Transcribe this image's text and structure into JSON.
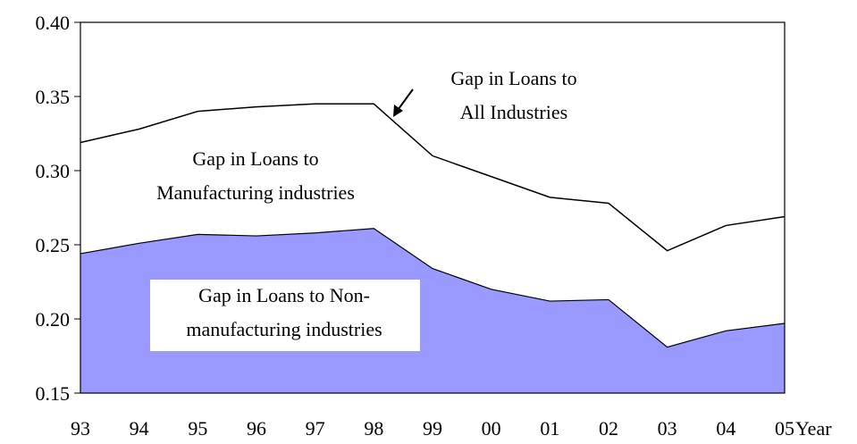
{
  "chart_data": {
    "type": "area",
    "x_label": "Year",
    "categories": [
      "93",
      "94",
      "95",
      "96",
      "97",
      "98",
      "99",
      "00",
      "01",
      "02",
      "03",
      "04",
      "05"
    ],
    "series": [
      {
        "name": "Gap in Loans to All Industries",
        "color": "#000000",
        "fill": false,
        "values": [
          0.319,
          0.328,
          0.34,
          0.343,
          0.345,
          0.345,
          0.31,
          0.296,
          0.282,
          0.278,
          0.246,
          0.263,
          0.269
        ]
      },
      {
        "name": "Gap in Loans to Non-manufacturing industries",
        "color": "#9999ff",
        "fill": true,
        "values": [
          0.244,
          0.251,
          0.257,
          0.256,
          0.258,
          0.261,
          0.234,
          0.22,
          0.212,
          0.213,
          0.181,
          0.192,
          0.197
        ]
      }
    ],
    "annotations": [
      {
        "lines": [
          "Gap in Loans to",
          "All Industries"
        ]
      },
      {
        "lines": [
          "Gap in Loans to",
          "Manufacturing industries"
        ]
      },
      {
        "lines": [
          "Gap in Loans to Non-",
          "manufacturing industries"
        ]
      }
    ],
    "ylim": [
      0.15,
      0.4
    ],
    "yticks": [
      0.15,
      {
        "value": 0.2,
        "label": "0.20"
      },
      0.25,
      {
        "value": 0.3,
        "label": "0.30"
      },
      0.35,
      {
        "value": 0.4,
        "label": "0.40"
      }
    ],
    "grid": false
  }
}
